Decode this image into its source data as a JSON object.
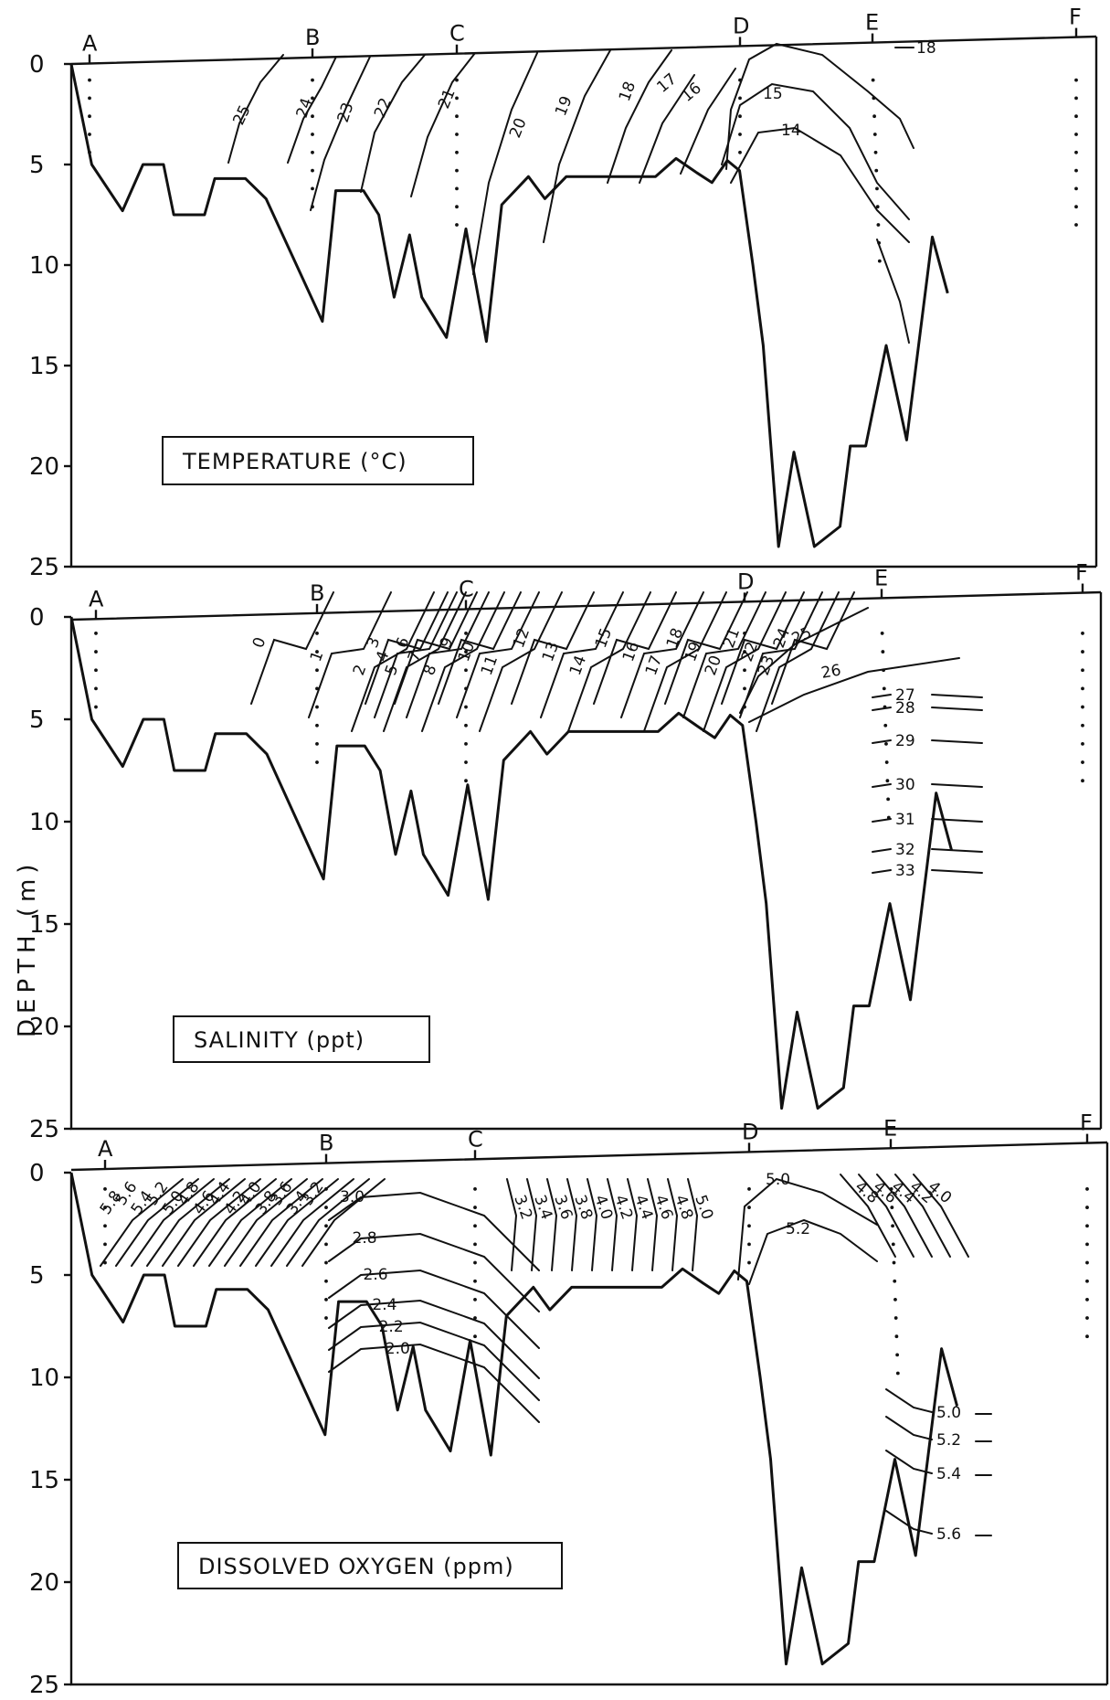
{
  "ylabel": "DEPTH (m)",
  "chart_data": [
    {
      "type": "contour-section",
      "title": "TEMPERATURE (°C)",
      "ylim": [
        0,
        25
      ],
      "yticks": [
        "0",
        "5",
        "10",
        "15",
        "20",
        "25"
      ],
      "stations": [
        "A",
        "B",
        "C",
        "D",
        "E",
        "F"
      ],
      "contour_labels": [
        "25",
        "24",
        "23",
        "22",
        "21",
        "20",
        "19",
        "18",
        "17",
        "16",
        "15",
        "14",
        "18"
      ]
    },
    {
      "type": "contour-section",
      "title": "SALINITY (ppt)",
      "ylim": [
        0,
        25
      ],
      "yticks": [
        "0",
        "5",
        "10",
        "15",
        "20",
        "25"
      ],
      "stations": [
        "A",
        "B",
        "C",
        "D",
        "E",
        "F"
      ],
      "contour_labels": [
        "0",
        "1",
        "2",
        "3",
        "4",
        "5",
        "6",
        "7",
        "8",
        "9",
        "10",
        "11",
        "12",
        "13",
        "14",
        "15",
        "16",
        "17",
        "18",
        "19",
        "20",
        "21",
        "22",
        "23",
        "24",
        "25",
        "26",
        "27",
        "28",
        "29",
        "30",
        "31",
        "32",
        "33"
      ]
    },
    {
      "type": "contour-section",
      "title": "DISSOLVED OXYGEN (ppm)",
      "ylim": [
        0,
        25
      ],
      "yticks": [
        "0",
        "5",
        "10",
        "15",
        "20",
        "25"
      ],
      "stations": [
        "A",
        "B",
        "C",
        "D",
        "E",
        "F"
      ],
      "contour_labels": [
        "5.8",
        "5.6",
        "5.4",
        "5.2",
        "5.0",
        "4.8",
        "4.6",
        "4.4",
        "4.2",
        "4.0",
        "3.8",
        "3.6",
        "3.4",
        "3.2",
        "3.0",
        "2.8",
        "2.6",
        "2.4",
        "2.2",
        "2.0",
        "3.2",
        "3.4",
        "3.6",
        "3.8",
        "4.0",
        "4.2",
        "4.4",
        "4.6",
        "4.8",
        "5.0",
        "5.2",
        "4.8",
        "4.6",
        "4.4",
        "4.2",
        "4.0",
        "5.0",
        "5.2",
        "5.4",
        "5.6"
      ]
    }
  ]
}
